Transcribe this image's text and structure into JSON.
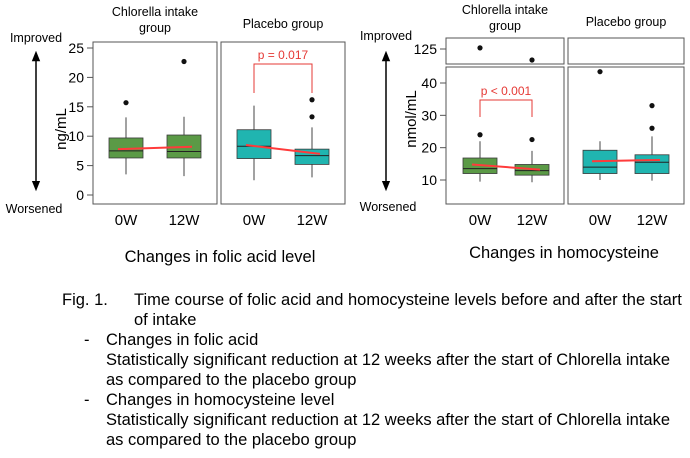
{
  "colors": {
    "chlorella_box": "#5b9a46",
    "placebo_box": "#20b5b0",
    "mean_line": "#ff3b3b",
    "significance": "#e53935",
    "panel_border": "#555555",
    "ink": "#000000"
  },
  "arrow_labels": {
    "top": "Improved",
    "bottom": "Worsened"
  },
  "chart_data": [
    {
      "type": "box",
      "title": "Changes in folic acid level",
      "ylabel": "ng/mL",
      "ylim": [
        0,
        27
      ],
      "yticks": [
        0,
        5,
        10,
        15,
        20,
        25
      ],
      "groups": [
        {
          "name": "Chlorella intake group",
          "color": "#5b9a46",
          "boxes": [
            {
              "x": "0W",
              "whisker_low": 3.5,
              "q1": 6.3,
              "median": 7.5,
              "q3": 9.7,
              "whisker_high": 13.2,
              "mean": 7.8,
              "outliers": [
                15.7
              ]
            },
            {
              "x": "12W",
              "whisker_low": 3.2,
              "q1": 6.3,
              "median": 7.4,
              "q3": 10.2,
              "whisker_high": 13.3,
              "mean": 8.2,
              "outliers": [
                22.7
              ]
            }
          ]
        },
        {
          "name": "Placebo group",
          "color": "#20b5b0",
          "boxes": [
            {
              "x": "0W",
              "whisker_low": 2.5,
              "q1": 6.2,
              "median": 8.3,
              "q3": 11.1,
              "whisker_high": 15.2,
              "mean": 8.5,
              "outliers": []
            },
            {
              "x": "12W",
              "whisker_low": 3.0,
              "q1": 5.2,
              "median": 6.7,
              "q3": 7.8,
              "whisker_high": 11.5,
              "mean": 7.0,
              "outliers": [
                16.2,
                13.3
              ]
            }
          ],
          "annotation": "p = 0.017"
        }
      ]
    },
    {
      "type": "box",
      "title": "Changes in homocysteine",
      "ylabel": "nmol/mL",
      "broken_axis": true,
      "ylim_lower": [
        5,
        45
      ],
      "yticks_lower": [
        10,
        20,
        30,
        40
      ],
      "ylim_upper": [
        117,
        130
      ],
      "yticks_upper": [
        125
      ],
      "groups": [
        {
          "name": "Chlorella intake group",
          "color": "#5b9a46",
          "boxes": [
            {
              "x": "0W",
              "whisker_low": 9.5,
              "q1": 12.0,
              "median": 13.5,
              "q3": 16.8,
              "whisker_high": 22.0,
              "mean": 14.8,
              "outliers": [
                24.0,
                125.5
              ]
            },
            {
              "x": "12W",
              "whisker_low": 9.3,
              "q1": 11.5,
              "median": 12.9,
              "q3": 14.8,
              "whisker_high": 19.0,
              "mean": 13.2,
              "outliers": [
                22.5,
                120.0
              ]
            }
          ],
          "annotation": "p < 0.001"
        },
        {
          "name": "Placebo group",
          "color": "#20b5b0",
          "boxes": [
            {
              "x": "0W",
              "whisker_low": 10.0,
              "q1": 12.0,
              "median": 14.0,
              "q3": 19.2,
              "whisker_high": 22.0,
              "mean": 15.8,
              "outliers": [
                43.5
              ]
            },
            {
              "x": "12W",
              "whisker_low": 9.8,
              "q1": 12.0,
              "median": 15.5,
              "q3": 17.8,
              "whisker_high": 23.5,
              "mean": 16.2,
              "outliers": [
                33.0,
                26.0
              ]
            }
          ]
        }
      ]
    }
  ],
  "caption": {
    "number": "Fig. 1.",
    "title": "Time course of folic acid and homocysteine levels before and after the start of intake",
    "items": [
      {
        "dash": "-",
        "heading": "Changes in folic acid",
        "text": "Statistically significant reduction at 12 weeks after the start of Chlorella intake as compared to the placebo group"
      },
      {
        "dash": "-",
        "heading": "Changes in homocysteine level",
        "text": "Statistically significant reduction at 12 weeks after the start of Chlorella intake as compared to the placebo group"
      }
    ]
  }
}
